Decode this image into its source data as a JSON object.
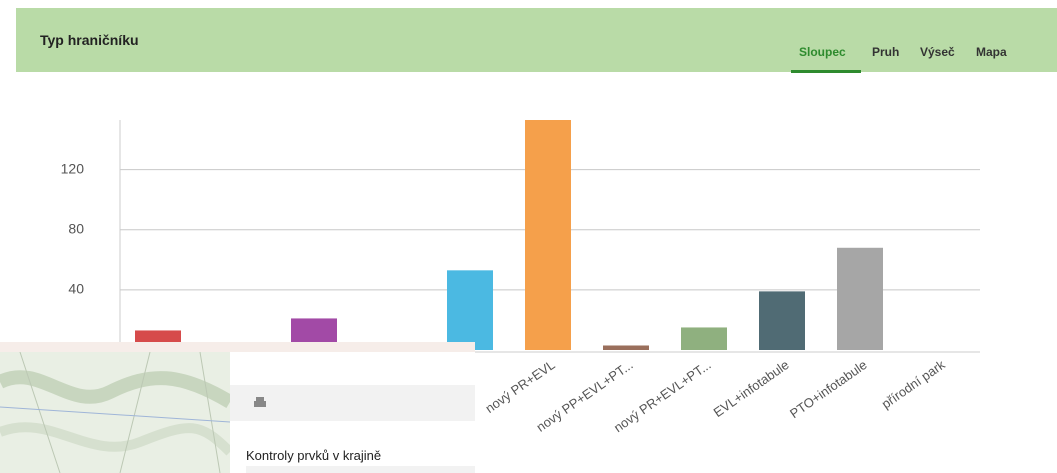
{
  "header": {
    "title": "Typ hraničníku",
    "tabs": [
      "Sloupec",
      "Pruh",
      "Výseč",
      "Mapa"
    ],
    "active_tab": 0
  },
  "chart_data": {
    "type": "bar",
    "categories": [
      null,
      null,
      null,
      null,
      null,
      "nový PR+EVL",
      "nový PP+EVL+PT...",
      "nový PR+EVL+PT...",
      "EVL+infotabule",
      "PTO+infotabule",
      "přírodní park"
    ],
    "values": [
      13,
      null,
      21,
      null,
      53,
      153,
      3,
      15,
      39,
      68,
      0
    ],
    "colors": [
      "#d64b4b",
      null,
      "#a24aa6",
      null,
      "#4bb9e2",
      "#f5a04b",
      "#9a6f5c",
      "#8fb07f",
      "#506b74",
      "#a6a6a6",
      "#a6a6a6"
    ],
    "ylim": [
      0,
      153
    ],
    "yticks": [
      40,
      80,
      120
    ],
    "grid": true
  },
  "panel": {
    "title": "Kontroly prvků v krajině"
  }
}
